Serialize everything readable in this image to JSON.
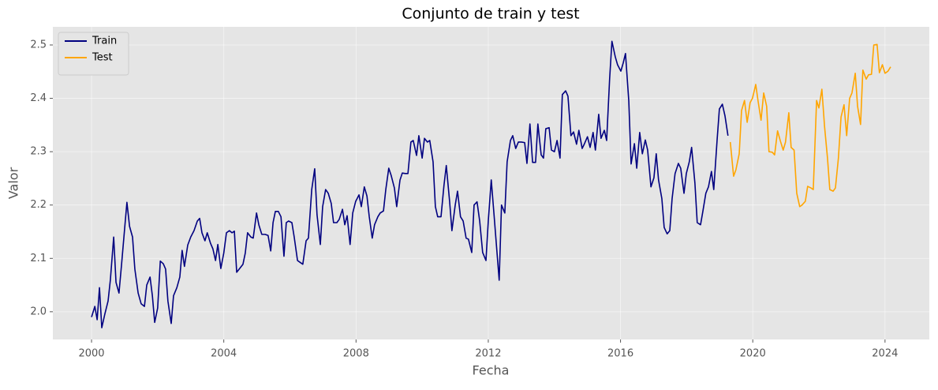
{
  "chart_data": {
    "type": "line",
    "title": "Conjunto de train y test",
    "x_label": "Fecha",
    "y_label": "Valor",
    "xlim": [
      1998.83,
      2025.34
    ],
    "ylim": [
      1.948,
      2.534
    ],
    "xticks": [
      2000,
      2004,
      2008,
      2012,
      2016,
      2020,
      2024
    ],
    "yticks": [
      {
        "value": 2,
        "label": "2.0"
      },
      2.1,
      2.2,
      2.3,
      2.4,
      2.5
    ],
    "grid": true,
    "legend": "upper-left",
    "series": [
      {
        "name": "Train",
        "color": "#000080",
        "x": [
          2000.0,
          2000.1,
          2000.17,
          2000.24,
          2000.31,
          2000.4,
          2000.5,
          2000.57,
          2000.67,
          2000.74,
          2000.83,
          2000.91,
          2001.0,
          2001.07,
          2001.15,
          2001.24,
          2001.31,
          2001.41,
          2001.5,
          2001.6,
          2001.67,
          2001.77,
          2001.84,
          2001.91,
          2002.0,
          2002.08,
          2002.17,
          2002.24,
          2002.31,
          2002.41,
          2002.48,
          2002.58,
          2002.67,
          2002.74,
          2002.81,
          2002.91,
          2003.0,
          2003.1,
          2003.2,
          2003.27,
          2003.34,
          2003.43,
          2003.5,
          2003.6,
          2003.67,
          2003.75,
          2003.82,
          2003.91,
          2004.0,
          2004.08,
          2004.17,
          2004.25,
          2004.32,
          2004.39,
          2004.48,
          2004.58,
          2004.65,
          2004.72,
          2004.82,
          2004.89,
          2004.99,
          2005.06,
          2005.15,
          2005.25,
          2005.34,
          2005.42,
          2005.49,
          2005.56,
          2005.65,
          2005.73,
          2005.82,
          2005.89,
          2005.96,
          2006.06,
          2006.13,
          2006.23,
          2006.32,
          2006.39,
          2006.49,
          2006.56,
          2006.66,
          2006.75,
          2006.82,
          2006.92,
          2006.99,
          2007.08,
          2007.16,
          2007.25,
          2007.32,
          2007.42,
          2007.49,
          2007.59,
          2007.66,
          2007.73,
          2007.82,
          2007.9,
          2007.99,
          2008.09,
          2008.16,
          2008.25,
          2008.33,
          2008.4,
          2008.49,
          2008.56,
          2008.66,
          2008.73,
          2008.83,
          2008.9,
          2008.99,
          2009.06,
          2009.16,
          2009.23,
          2009.33,
          2009.4,
          2009.49,
          2009.57,
          2009.66,
          2009.73,
          2009.83,
          2009.9,
          2010.0,
          2010.07,
          2010.16,
          2010.23,
          2010.33,
          2010.4,
          2010.47,
          2010.57,
          2010.66,
          2010.73,
          2010.83,
          2010.9,
          2011.0,
          2011.07,
          2011.16,
          2011.24,
          2011.33,
          2011.4,
          2011.5,
          2011.57,
          2011.66,
          2011.74,
          2011.83,
          2011.93,
          2012.0,
          2012.09,
          2012.17,
          2012.26,
          2012.33,
          2012.4,
          2012.5,
          2012.57,
          2012.67,
          2012.74,
          2012.83,
          2012.91,
          2013.0,
          2013.1,
          2013.17,
          2013.26,
          2013.34,
          2013.43,
          2013.5,
          2013.6,
          2013.67,
          2013.74,
          2013.84,
          2013.91,
          2014.0,
          2014.08,
          2014.17,
          2014.24,
          2014.34,
          2014.41,
          2014.5,
          2014.58,
          2014.67,
          2014.74,
          2014.84,
          2014.91,
          2015.0,
          2015.08,
          2015.17,
          2015.24,
          2015.34,
          2015.41,
          2015.51,
          2015.58,
          2015.67,
          2015.74,
          2015.84,
          2015.91,
          2016.01,
          2016.08,
          2016.15,
          2016.25,
          2016.32,
          2016.42,
          2016.49,
          2016.58,
          2016.66,
          2016.75,
          2016.82,
          2016.92,
          2017.01,
          2017.08,
          2017.15,
          2017.25,
          2017.32,
          2017.41,
          2017.49,
          2017.56,
          2017.65,
          2017.75,
          2017.82,
          2017.92,
          2017.99,
          2018.08,
          2018.15,
          2018.25,
          2018.32,
          2018.42,
          2018.49,
          2018.58,
          2018.66,
          2018.75,
          2018.82,
          2018.92,
          2018.99,
          2019.08,
          2019.16,
          2019.25
        ],
        "values": [
          1.99,
          2.01,
          1.985,
          2.045,
          1.97,
          1.995,
          2.02,
          2.06,
          2.14,
          2.055,
          2.035,
          2.09,
          2.155,
          2.205,
          2.16,
          2.14,
          2.08,
          2.035,
          2.015,
          2.01,
          2.05,
          2.065,
          2.03,
          1.98,
          2.007,
          2.095,
          2.09,
          2.08,
          2.02,
          1.978,
          2.03,
          2.045,
          2.065,
          2.115,
          2.085,
          2.125,
          2.14,
          2.152,
          2.17,
          2.175,
          2.148,
          2.133,
          2.148,
          2.128,
          2.118,
          2.096,
          2.126,
          2.081,
          2.11,
          2.148,
          2.152,
          2.148,
          2.151,
          2.074,
          2.081,
          2.089,
          2.11,
          2.148,
          2.14,
          2.138,
          2.185,
          2.163,
          2.145,
          2.145,
          2.143,
          2.114,
          2.167,
          2.188,
          2.188,
          2.178,
          2.104,
          2.167,
          2.17,
          2.167,
          2.14,
          2.096,
          2.092,
          2.089,
          2.133,
          2.138,
          2.229,
          2.268,
          2.182,
          2.126,
          2.197,
          2.229,
          2.222,
          2.203,
          2.167,
          2.167,
          2.173,
          2.192,
          2.163,
          2.18,
          2.126,
          2.185,
          2.207,
          2.219,
          2.197,
          2.234,
          2.217,
          2.178,
          2.138,
          2.163,
          2.178,
          2.185,
          2.189,
          2.229,
          2.269,
          2.256,
          2.232,
          2.197,
          2.247,
          2.26,
          2.259,
          2.259,
          2.318,
          2.321,
          2.293,
          2.33,
          2.288,
          2.325,
          2.318,
          2.321,
          2.281,
          2.197,
          2.178,
          2.178,
          2.237,
          2.274,
          2.207,
          2.152,
          2.2,
          2.226,
          2.178,
          2.17,
          2.138,
          2.136,
          2.111,
          2.2,
          2.206,
          2.17,
          2.111,
          2.096,
          2.17,
          2.247,
          2.185,
          2.114,
          2.059,
          2.2,
          2.185,
          2.281,
          2.321,
          2.33,
          2.306,
          2.318,
          2.318,
          2.317,
          2.278,
          2.352,
          2.28,
          2.28,
          2.352,
          2.294,
          2.288,
          2.343,
          2.345,
          2.303,
          2.3,
          2.321,
          2.288,
          2.407,
          2.414,
          2.404,
          2.33,
          2.337,
          2.314,
          2.34,
          2.306,
          2.315,
          2.328,
          2.308,
          2.336,
          2.303,
          2.37,
          2.325,
          2.34,
          2.321,
          2.436,
          2.507,
          2.478,
          2.463,
          2.451,
          2.466,
          2.484,
          2.395,
          2.277,
          2.315,
          2.269,
          2.336,
          2.296,
          2.322,
          2.303,
          2.234,
          2.251,
          2.296,
          2.247,
          2.212,
          2.158,
          2.146,
          2.152,
          2.212,
          2.259,
          2.278,
          2.269,
          2.222,
          2.259,
          2.281,
          2.308,
          2.241,
          2.167,
          2.163,
          2.188,
          2.222,
          2.234,
          2.263,
          2.229,
          2.321,
          2.38,
          2.389,
          2.367,
          2.33
        ]
      },
      {
        "name": "Test",
        "color": "#ffa500",
        "x": [
          2019.32,
          2019.42,
          2019.49,
          2019.59,
          2019.66,
          2019.75,
          2019.83,
          2019.92,
          2019.99,
          2020.09,
          2020.16,
          2020.25,
          2020.33,
          2020.42,
          2020.49,
          2020.59,
          2020.66,
          2020.75,
          2020.83,
          2020.92,
          2020.99,
          2021.09,
          2021.16,
          2021.25,
          2021.33,
          2021.42,
          2021.49,
          2021.59,
          2021.66,
          2021.76,
          2021.83,
          2021.93,
          2022.0,
          2022.09,
          2022.17,
          2022.26,
          2022.33,
          2022.43,
          2022.5,
          2022.59,
          2022.67,
          2022.76,
          2022.84,
          2022.93,
          2023.0,
          2023.1,
          2023.17,
          2023.26,
          2023.33,
          2023.43,
          2023.5,
          2023.59,
          2023.66,
          2023.76,
          2023.83,
          2023.92,
          2024.0,
          2024.09,
          2024.17
        ],
        "values": [
          2.318,
          2.254,
          2.266,
          2.296,
          2.377,
          2.396,
          2.355,
          2.392,
          2.4,
          2.426,
          2.395,
          2.359,
          2.41,
          2.385,
          2.3,
          2.299,
          2.294,
          2.339,
          2.321,
          2.303,
          2.318,
          2.373,
          2.308,
          2.303,
          2.222,
          2.197,
          2.2,
          2.207,
          2.235,
          2.232,
          2.229,
          2.396,
          2.382,
          2.417,
          2.348,
          2.288,
          2.229,
          2.226,
          2.232,
          2.288,
          2.365,
          2.388,
          2.33,
          2.4,
          2.41,
          2.447,
          2.385,
          2.351,
          2.453,
          2.436,
          2.444,
          2.445,
          2.5,
          2.501,
          2.448,
          2.463,
          2.447,
          2.451,
          2.459
        ]
      }
    ]
  }
}
